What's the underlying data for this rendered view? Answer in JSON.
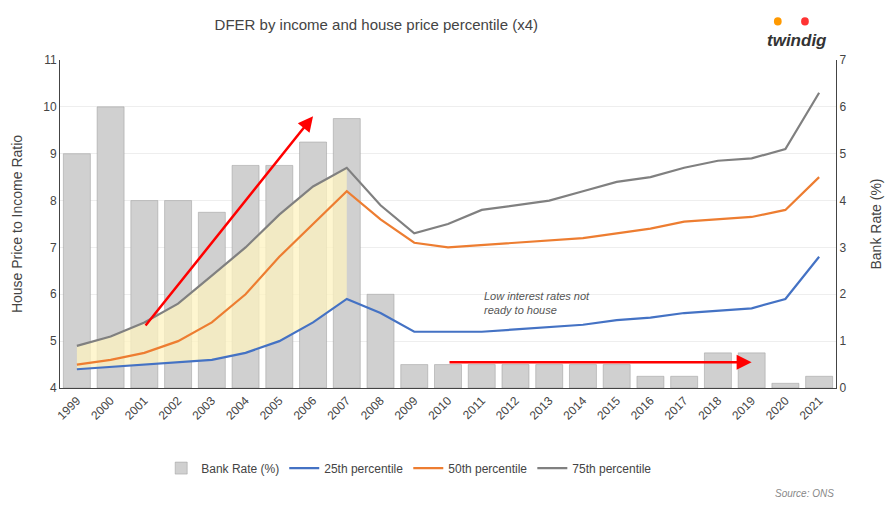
{
  "chart_data": {
    "type": "line",
    "title": "DFER by income and house price percentile (x4)",
    "categories": [
      "1999",
      "2000",
      "2001",
      "2002",
      "2003",
      "2004",
      "2005",
      "2006",
      "2007",
      "2008",
      "2009",
      "2010",
      "2011",
      "2012",
      "2013",
      "2014",
      "2015",
      "2016",
      "2017",
      "2018",
      "2019",
      "2020",
      "2021"
    ],
    "series": [
      {
        "name": "Bank Rate (%)",
        "type": "bar",
        "axis": "y2",
        "color": "#d0d0d0",
        "values": [
          5.0,
          6.0,
          4.0,
          4.0,
          3.75,
          4.75,
          4.75,
          5.25,
          5.75,
          2.0,
          0.5,
          0.5,
          0.5,
          0.5,
          0.5,
          0.5,
          0.5,
          0.25,
          0.25,
          0.75,
          0.75,
          0.1,
          0.25
        ]
      },
      {
        "name": "25th percentile",
        "type": "line",
        "color": "#4472c4",
        "values": [
          4.4,
          4.45,
          4.5,
          4.55,
          4.6,
          4.75,
          5.0,
          5.4,
          5.9,
          5.6,
          5.2,
          5.2,
          5.2,
          5.25,
          5.3,
          5.35,
          5.45,
          5.5,
          5.6,
          5.65,
          5.7,
          5.9,
          6.8
        ]
      },
      {
        "name": "50th percentile",
        "type": "line",
        "color": "#ed7d31",
        "values": [
          4.5,
          4.6,
          4.75,
          5.0,
          5.4,
          6.0,
          6.8,
          7.5,
          8.2,
          7.6,
          7.1,
          7.0,
          7.05,
          7.1,
          7.15,
          7.2,
          7.3,
          7.4,
          7.55,
          7.6,
          7.65,
          7.8,
          8.5
        ]
      },
      {
        "name": "75th percentile",
        "type": "line",
        "color": "#808080",
        "values": [
          4.9,
          5.1,
          5.4,
          5.8,
          6.4,
          7.0,
          7.7,
          8.3,
          8.7,
          7.9,
          7.3,
          7.5,
          7.8,
          7.9,
          8.0,
          8.2,
          8.4,
          8.5,
          8.7,
          8.85,
          8.9,
          9.1,
          10.3
        ]
      }
    ],
    "ylabel": "House Price to Income Ratio",
    "y2label": "Bank Rate (%)",
    "ylim": [
      4,
      11
    ],
    "yticks": [
      4,
      5,
      6,
      7,
      8,
      9,
      10,
      11
    ],
    "y2lim": [
      0,
      7
    ],
    "y2ticks": [
      0,
      1,
      2,
      3,
      4,
      5,
      6,
      7
    ],
    "grid": true,
    "legend": "bottom",
    "shade": {
      "between": [
        "25th percentile",
        "75th percentile"
      ],
      "until": "2007",
      "color": "#fef3c0"
    },
    "arrows": [
      {
        "from": {
          "x": "2001",
          "y": 5.3
        },
        "to": {
          "x": "2006",
          "y": 9.8
        },
        "color": "red"
      },
      {
        "from": {
          "x": "2010",
          "y": 4.55
        },
        "to": {
          "x": "2019",
          "y": 4.55
        },
        "color": "red"
      }
    ],
    "annotations": [
      {
        "text": "Low interest rates not\nready to house",
        "x": "2011",
        "y": 5.5
      }
    ],
    "source": "Source: ONS",
    "brand": {
      "text": "twindig",
      "dot_colors": [
        "#ff9900",
        "#ff3333"
      ]
    }
  }
}
